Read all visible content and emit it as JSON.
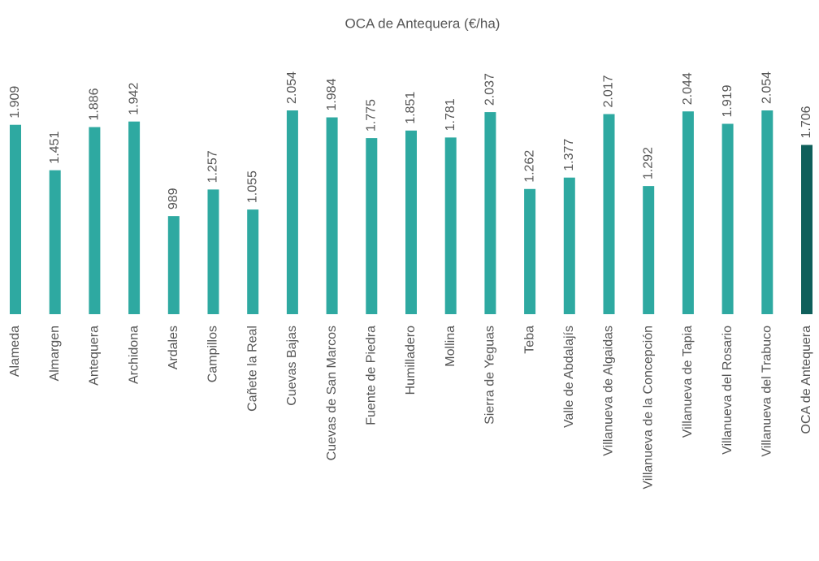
{
  "chart_data": {
    "type": "bar",
    "title": "OCA de Antequera (€/ha)",
    "categories": [
      "Alameda",
      "Almargen",
      "Antequera",
      "Archidona",
      "Ardales",
      "Campillos",
      "Cañete la Real",
      "Cuevas Bajas",
      "Cuevas de San Marcos",
      "Fuente de Piedra",
      "Humilladero",
      "Mollina",
      "Sierra de Yeguas",
      "Teba",
      "Valle de Abdalajís",
      "Villanueva de Algaidas",
      "Villanueva de la Concepción",
      "Villanueva de Tapia",
      "Villanueva del Rosario",
      "Villanueva del Trabuco",
      "OCA de Antequera"
    ],
    "values": [
      1909,
      1451,
      1886,
      1942,
      989,
      1257,
      1055,
      2054,
      1984,
      1775,
      1851,
      1781,
      2037,
      1262,
      1377,
      2017,
      1292,
      2044,
      1919,
      2054,
      1706
    ],
    "value_labels": [
      "1.909",
      "1.451",
      "1.886",
      "1.942",
      "989",
      "1.257",
      "1.055",
      "2.054",
      "1.984",
      "1.775",
      "1.851",
      "1.781",
      "2.037",
      "1.262",
      "1.377",
      "2.017",
      "1.292",
      "2.044",
      "1.919",
      "2.054",
      "1.706"
    ],
    "colors": [
      "#2ea9a1",
      "#2ea9a1",
      "#2ea9a1",
      "#2ea9a1",
      "#2ea9a1",
      "#2ea9a1",
      "#2ea9a1",
      "#2ea9a1",
      "#2ea9a1",
      "#2ea9a1",
      "#2ea9a1",
      "#2ea9a1",
      "#2ea9a1",
      "#2ea9a1",
      "#2ea9a1",
      "#2ea9a1",
      "#2ea9a1",
      "#2ea9a1",
      "#2ea9a1",
      "#2ea9a1",
      "#0f5f5b"
    ],
    "ylim": [
      0,
      2500
    ]
  }
}
